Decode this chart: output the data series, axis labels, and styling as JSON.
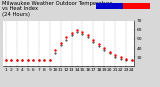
{
  "title": "Milwaukee Weather Outdoor Temperature\nvs Heat Index\n(24 Hours)",
  "background_color": "#d8d8d8",
  "plot_bg_color": "#ffffff",
  "x_hours": [
    1,
    2,
    3,
    4,
    5,
    6,
    7,
    8,
    9,
    10,
    11,
    12,
    13,
    14,
    15,
    16,
    17,
    18,
    19,
    20,
    21,
    22,
    23,
    24
  ],
  "temp_values": [
    27,
    27,
    27,
    27,
    27,
    27,
    27,
    27,
    27,
    38,
    46,
    52,
    57,
    60,
    58,
    54,
    49,
    44,
    40,
    36,
    32,
    30,
    28,
    27
  ],
  "heat_values": [
    27,
    27,
    27,
    27,
    27,
    27,
    27,
    27,
    27,
    35,
    43,
    49,
    54,
    58,
    56,
    52,
    47,
    42,
    38,
    34,
    30,
    28,
    27,
    27
  ],
  "ylim": [
    20,
    70
  ],
  "yticks": [
    30,
    40,
    50,
    60,
    70
  ],
  "temp_color": "#ff0000",
  "heat_color": "#000000",
  "grid_color": "#999999",
  "legend_blue_color": "#0000cc",
  "legend_red_color": "#ff0000",
  "title_fontsize": 3.8,
  "tick_fontsize": 3.2,
  "dpi": 100
}
